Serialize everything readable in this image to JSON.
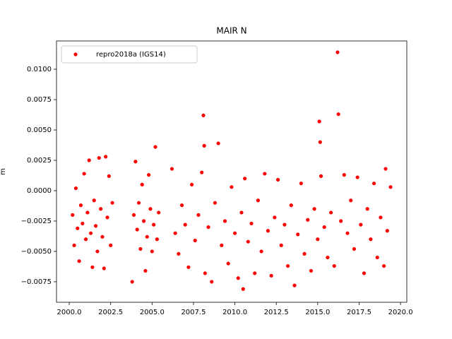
{
  "chart_data": {
    "type": "scatter",
    "title": "MAIR N",
    "ylabel": "m",
    "xlim": [
      1999.23,
      2020.38
    ],
    "ylim": [
      -0.00919,
      0.01233
    ],
    "xticks": [
      {
        "value": 2000,
        "label": "2000.0"
      },
      {
        "value": 2002.5,
        "label": "2002.5"
      },
      {
        "value": 2005,
        "label": "2005.0"
      },
      {
        "value": 2007.5,
        "label": "2007.5"
      },
      {
        "value": 2010,
        "label": "2010.0"
      },
      {
        "value": 2012.5,
        "label": "2012.5"
      },
      {
        "value": 2015,
        "label": "2015.0"
      },
      {
        "value": 2017.5,
        "label": "2017.5"
      },
      {
        "value": 2020,
        "label": "2020.0"
      }
    ],
    "yticks": [
      {
        "value": -0.0075,
        "label": "−0.0075"
      },
      {
        "value": -0.005,
        "label": "−0.0050"
      },
      {
        "value": -0.0025,
        "label": "−0.0025"
      },
      {
        "value": 0,
        "label": "0.0000"
      },
      {
        "value": 0.0025,
        "label": "0.0025"
      },
      {
        "value": 0.005,
        "label": "0.0050"
      },
      {
        "value": 0.0075,
        "label": "0.0075"
      },
      {
        "value": 0.01,
        "label": "0.0100"
      }
    ],
    "legend": "upper left",
    "series": [
      {
        "name": "repro2018a (IGS14)",
        "color": "#ff0000",
        "x": [
          2000.2,
          2000.3,
          2000.4,
          2000.5,
          2000.6,
          2000.7,
          2000.8,
          2000.9,
          2001.0,
          2001.1,
          2001.2,
          2001.3,
          2001.4,
          2001.5,
          2001.6,
          2001.7,
          2001.8,
          2001.9,
          2002.0,
          2002.1,
          2002.2,
          2002.3,
          2002.4,
          2002.5,
          2002.6,
          2003.8,
          2003.9,
          2004.0,
          2004.1,
          2004.2,
          2004.3,
          2004.4,
          2004.5,
          2004.6,
          2004.7,
          2004.8,
          2004.9,
          2005.0,
          2005.1,
          2005.2,
          2005.3,
          2005.4,
          2006.2,
          2006.4,
          2006.6,
          2006.8,
          2007.0,
          2007.2,
          2007.4,
          2007.6,
          2007.8,
          2008.0,
          2008.1,
          2008.15,
          2008.2,
          2008.4,
          2008.6,
          2008.8,
          2009.0,
          2009.2,
          2009.4,
          2009.6,
          2009.8,
          2010.0,
          2010.2,
          2010.4,
          2010.5,
          2010.6,
          2010.8,
          2011.0,
          2011.2,
          2011.4,
          2011.6,
          2011.8,
          2012.0,
          2012.2,
          2012.4,
          2012.6,
          2012.8,
          2013.0,
          2013.2,
          2013.4,
          2013.6,
          2013.8,
          2014.0,
          2014.2,
          2014.4,
          2014.6,
          2014.8,
          2015.0,
          2015.1,
          2015.15,
          2015.2,
          2015.4,
          2015.6,
          2015.8,
          2016.0,
          2016.2,
          2016.25,
          2016.4,
          2016.6,
          2016.8,
          2017.0,
          2017.2,
          2017.4,
          2017.6,
          2017.8,
          2018.0,
          2018.2,
          2018.4,
          2018.6,
          2018.8,
          2019.0,
          2019.1,
          2019.2,
          2019.4
        ],
        "values": [
          -0.002,
          -0.0045,
          0.0002,
          -0.0031,
          -0.0058,
          -0.0012,
          -0.0027,
          0.0014,
          -0.004,
          -0.0018,
          0.0025,
          -0.0035,
          -0.0063,
          -0.0008,
          -0.0029,
          -0.005,
          0.0027,
          -0.0015,
          -0.0038,
          -0.0064,
          0.0028,
          -0.0022,
          0.0012,
          -0.0045,
          -0.001,
          -0.0075,
          -0.002,
          0.0024,
          -0.0032,
          -0.001,
          -0.0048,
          0.0005,
          -0.0025,
          -0.0066,
          -0.0038,
          0.0013,
          -0.0015,
          -0.005,
          -0.0028,
          0.0036,
          -0.004,
          -0.0018,
          0.0018,
          -0.0035,
          -0.0052,
          -0.0012,
          -0.0028,
          -0.0063,
          0.0005,
          -0.0041,
          -0.002,
          0.0015,
          0.0062,
          0.0037,
          -0.0068,
          -0.003,
          -0.0075,
          -0.001,
          0.0039,
          -0.0045,
          -0.0025,
          -0.006,
          0.0003,
          -0.0035,
          -0.0072,
          -0.0018,
          -0.0081,
          0.001,
          -0.0042,
          -0.0027,
          -0.0068,
          -0.0008,
          -0.005,
          0.0014,
          -0.0033,
          -0.007,
          -0.0022,
          0.0009,
          -0.0045,
          -0.0028,
          -0.0062,
          -0.0012,
          -0.0078,
          -0.0036,
          0.0006,
          -0.0052,
          -0.0024,
          -0.0066,
          -0.0015,
          -0.004,
          0.0057,
          0.004,
          0.0012,
          -0.003,
          -0.0055,
          -0.0018,
          -0.0062,
          0.0114,
          0.0063,
          -0.0025,
          0.0013,
          -0.0035,
          -0.0008,
          -0.0048,
          0.0011,
          -0.0028,
          -0.0068,
          -0.0015,
          -0.004,
          0.0006,
          -0.0055,
          -0.0022,
          -0.0062,
          0.0018,
          -0.0033,
          0.0003
        ]
      }
    ]
  }
}
